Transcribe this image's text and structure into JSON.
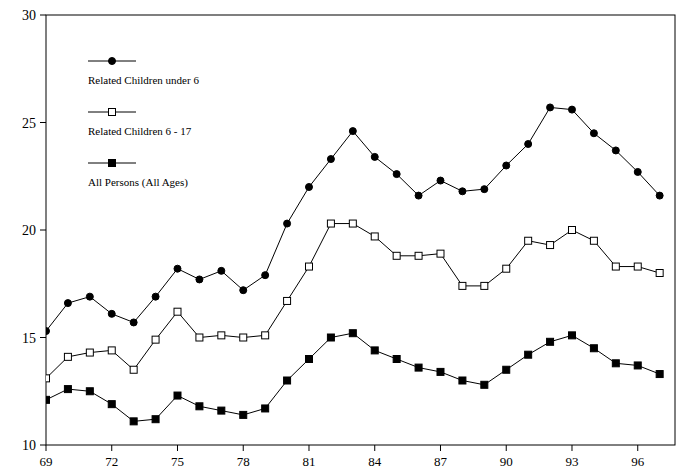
{
  "chart_data": {
    "type": "line",
    "x": [
      69,
      70,
      71,
      72,
      73,
      74,
      75,
      76,
      77,
      78,
      79,
      80,
      81,
      82,
      83,
      84,
      85,
      86,
      87,
      88,
      89,
      90,
      91,
      92,
      93,
      94,
      95,
      96,
      97
    ],
    "xlim": [
      69,
      97.7
    ],
    "xticks": [
      69,
      72,
      75,
      78,
      81,
      84,
      87,
      90,
      93,
      96
    ],
    "ylim": [
      10,
      30
    ],
    "yticks": [
      10,
      15,
      20,
      25,
      30
    ],
    "grid": false,
    "legend": "upper left",
    "series": [
      {
        "name": "Related Children under 6",
        "color": "#000000",
        "marker": "circle",
        "line_style": "solid",
        "values": [
          15.3,
          16.6,
          16.9,
          16.1,
          15.7,
          16.9,
          18.2,
          17.7,
          18.1,
          17.2,
          17.9,
          20.3,
          22.0,
          23.3,
          24.6,
          23.4,
          22.6,
          21.6,
          22.3,
          21.8,
          21.9,
          23.0,
          24.0,
          25.7,
          25.6,
          24.5,
          23.7,
          22.7,
          21.6
        ]
      },
      {
        "name": "Related Children 6 - 17",
        "color": "#000000",
        "marker": "square-open",
        "line_style": "solid",
        "values": [
          13.1,
          14.1,
          14.3,
          14.4,
          13.5,
          14.9,
          16.2,
          15.0,
          15.1,
          15.0,
          15.1,
          16.7,
          18.3,
          20.3,
          20.3,
          19.7,
          18.8,
          18.8,
          18.9,
          17.4,
          17.4,
          18.2,
          19.5,
          19.3,
          20.0,
          19.5,
          18.3,
          18.3,
          18.0
        ]
      },
      {
        "name": "All Persons (All Ages)",
        "color": "#000000",
        "marker": "square",
        "line_style": "solid",
        "values": [
          12.1,
          12.6,
          12.5,
          11.9,
          11.1,
          11.2,
          12.3,
          11.8,
          11.6,
          11.4,
          11.7,
          13.0,
          14.0,
          15.0,
          15.2,
          14.4,
          14.0,
          13.6,
          13.4,
          13.0,
          12.8,
          13.5,
          14.2,
          14.8,
          15.1,
          14.5,
          13.8,
          13.7,
          13.3
        ]
      }
    ]
  }
}
